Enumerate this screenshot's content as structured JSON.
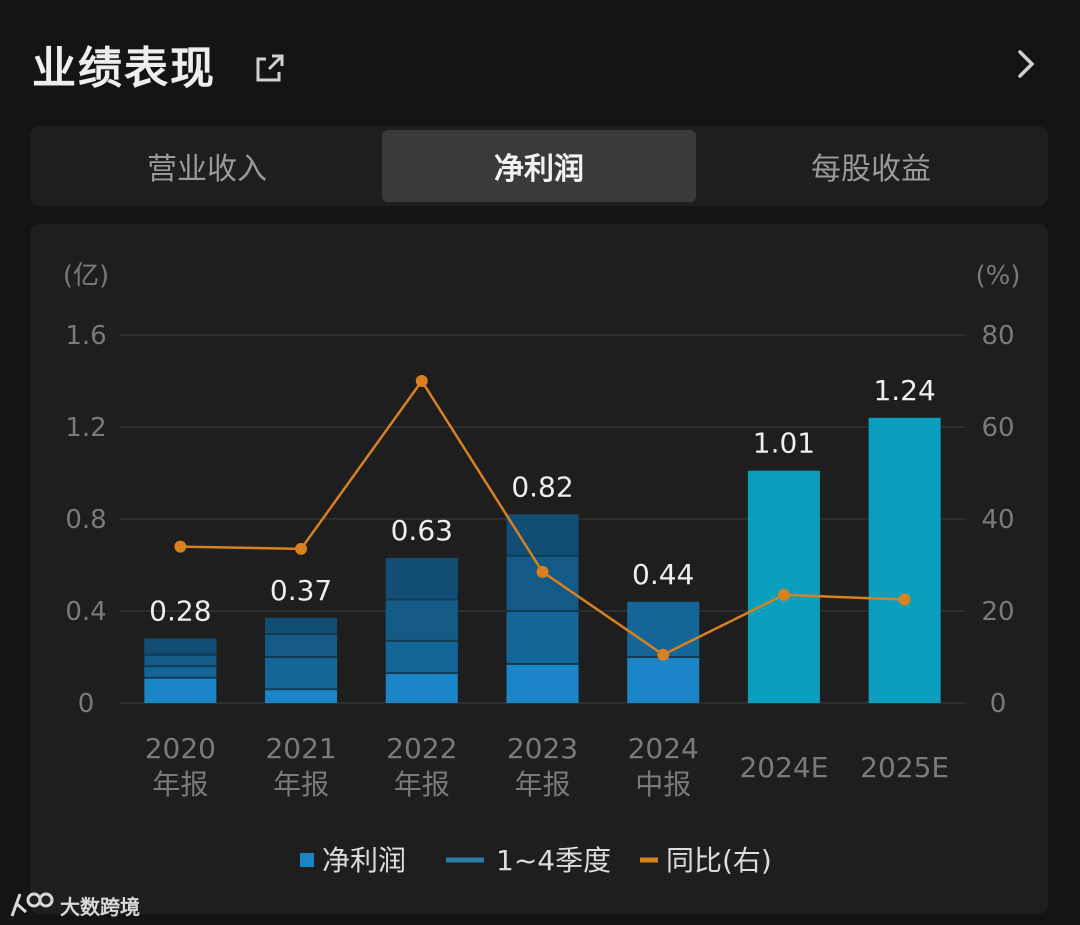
{
  "header": {
    "title": "业绩表现"
  },
  "tabs": [
    {
      "label": "营业收入",
      "active": false
    },
    {
      "label": "净利润",
      "active": true
    },
    {
      "label": "每股收益",
      "active": false
    }
  ],
  "watermark": {
    "text": "大数跨境"
  },
  "colors": {
    "bar_actual": "#1a86c8",
    "bar_estimate": "#0aa0bd",
    "quarter_shade": "#1d4f6e",
    "line": "#d9801f",
    "grid": "#333333",
    "axis_text": "#7a7a7a"
  },
  "chart_data": {
    "type": "bar",
    "left_unit": "(亿)",
    "right_unit": "(%)",
    "ylim": [
      0,
      1.6
    ],
    "y_ticks": [
      "0",
      "0.4",
      "0.8",
      "1.2",
      "1.6"
    ],
    "y2lim": [
      0,
      80
    ],
    "y2_ticks": [
      "0",
      "20",
      "40",
      "60",
      "80"
    ],
    "categories": [
      [
        "2020",
        "年报"
      ],
      [
        "2021",
        "年报"
      ],
      [
        "2022",
        "年报"
      ],
      [
        "2023",
        "年报"
      ],
      [
        "2024",
        "中报"
      ],
      [
        "2024E"
      ],
      [
        "2025E"
      ]
    ],
    "net_profit": [
      0.28,
      0.37,
      0.63,
      0.82,
      0.44,
      1.01,
      1.24
    ],
    "value_labels": [
      "0.28",
      "0.37",
      "0.63",
      "0.82",
      "0.44",
      "1.01",
      "1.24"
    ],
    "estimate": [
      false,
      false,
      false,
      false,
      false,
      true,
      true
    ],
    "quarterly_cumulative": [
      [
        0.11,
        0.16,
        0.21,
        0.28
      ],
      [
        0.06,
        0.2,
        0.3,
        0.37
      ],
      [
        0.13,
        0.27,
        0.45,
        0.63
      ],
      [
        0.17,
        0.4,
        0.64,
        0.82
      ],
      [
        0.2,
        0.44
      ],
      [],
      []
    ],
    "yoy_percent": [
      34,
      33.5,
      70,
      28.5,
      10.5,
      23.5,
      22.5
    ],
    "legend": [
      {
        "label": "净利润",
        "kind": "square"
      },
      {
        "label": "1~4季度",
        "kind": "dash"
      },
      {
        "label": "同比(右)",
        "kind": "line"
      }
    ]
  }
}
